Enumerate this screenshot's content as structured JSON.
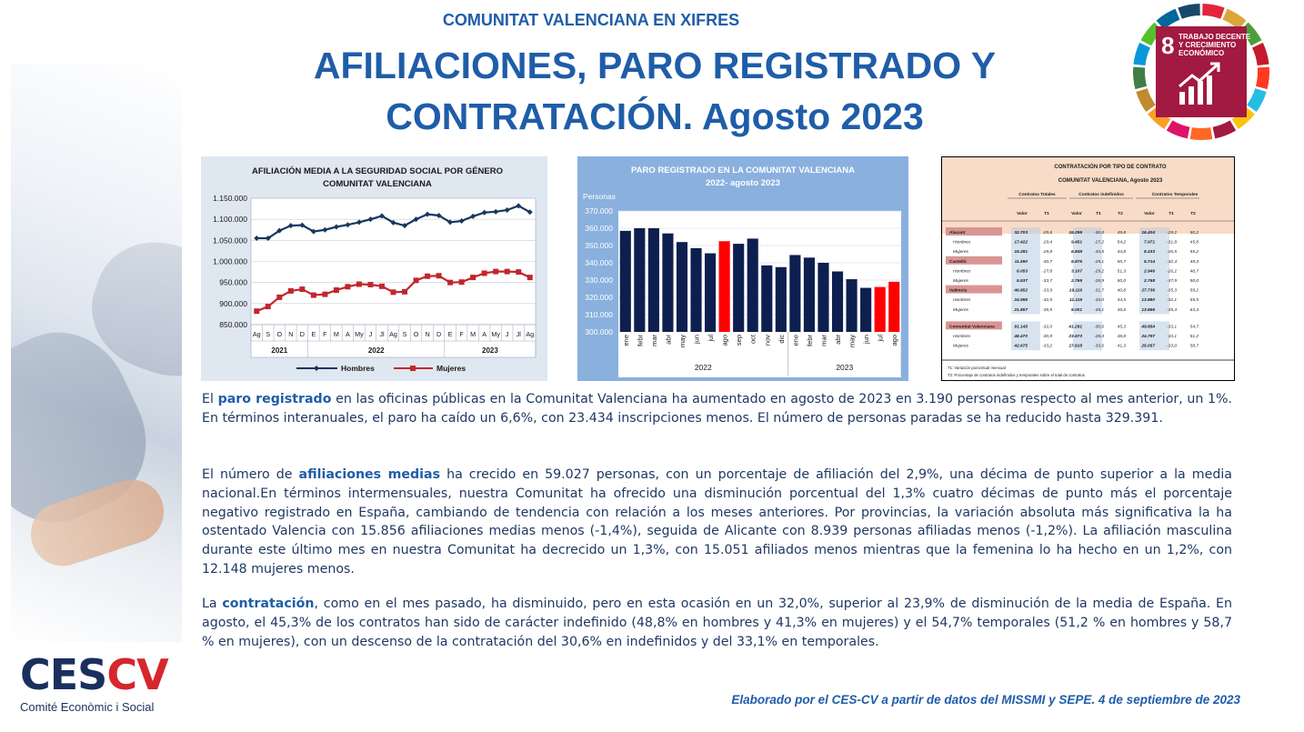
{
  "header": {
    "kicker": "COMUNITAT VALENCIANA EN XIFRES",
    "title_line1": "AFILIACIONES, PARO REGISTRADO Y",
    "title_line2": "CONTRATACIÓN. Agosto 2023"
  },
  "sdg_badge": {
    "number": "8",
    "label_line1": "TRABAJO DECENTE",
    "label_line2": "Y CRECIMIENTO",
    "label_line3": "ECONÓMICO",
    "color": "#a21942"
  },
  "logo": {
    "text_main": "CES",
    "text_accent": "CV",
    "subtitle": "Comité Econòmic i Social"
  },
  "chart_data": [
    {
      "type": "line",
      "title": "AFILIACIÓN MEDIA A LA SEGURIDAD SOCIAL POR GÉNERO",
      "subtitle": "COMUNITAT VALENCIANA",
      "categories": [
        "Ag",
        "S",
        "O",
        "N",
        "D",
        "E",
        "F",
        "M",
        "A",
        "My",
        "J",
        "Jl",
        "Ag",
        "S",
        "O",
        "N",
        "D",
        "E",
        "F",
        "M",
        "A",
        "My",
        "J",
        "Jl",
        "Ag"
      ],
      "year_groups": [
        {
          "label": "2021",
          "from": 0,
          "to": 4
        },
        {
          "label": "2022",
          "from": 5,
          "to": 16
        },
        {
          "label": "2023",
          "from": 17,
          "to": 24
        }
      ],
      "yticks": [
        "1.150.000",
        "1.100.000",
        "1.050.000",
        "1.000.000",
        "950.000",
        "900.000",
        "850.000"
      ],
      "ylim": [
        850000,
        1150000
      ],
      "series": [
        {
          "name": "Hombres",
          "color": "#17375e",
          "values": [
            1055000,
            1055000,
            1073000,
            1085000,
            1086000,
            1071000,
            1075000,
            1082000,
            1087000,
            1093000,
            1100000,
            1108000,
            1092000,
            1085000,
            1100000,
            1112000,
            1109000,
            1093000,
            1096000,
            1107000,
            1116000,
            1118000,
            1122000,
            1132000,
            1117000
          ]
        },
        {
          "name": "Mujeres",
          "color": "#c0272d",
          "values": [
            882000,
            893000,
            915000,
            930000,
            934000,
            920000,
            922000,
            932000,
            940000,
            946000,
            945000,
            941000,
            927000,
            928000,
            955000,
            965000,
            966000,
            950000,
            951000,
            962000,
            972000,
            976000,
            976000,
            975000,
            962000
          ]
        }
      ]
    },
    {
      "type": "bar",
      "title": "PARO REGISTRADO EN LA COMUNITAT VALENCIANA",
      "subtitle": "2022- agosto 2023",
      "ylabel": "Personas",
      "ylim": [
        300000,
        370000
      ],
      "yticks": [
        "370.000",
        "360.000",
        "350.000",
        "340.000",
        "330.000",
        "320.000",
        "310.000",
        "300.000"
      ],
      "categories": [
        "ene",
        "febr",
        "mar",
        "abr",
        "may",
        "jun",
        "jul",
        "ago",
        "sep",
        "oct",
        "nov",
        "dic",
        "ene",
        "febr",
        "mar",
        "abr",
        "may",
        "jun",
        "jul",
        "ago"
      ],
      "year_groups": [
        {
          "label": "2022",
          "from": 0,
          "to": 11
        },
        {
          "label": "2023",
          "from": 12,
          "to": 19
        }
      ],
      "values": [
        358500,
        360000,
        360000,
        357000,
        352000,
        348500,
        345500,
        352500,
        351000,
        354000,
        338500,
        337500,
        344500,
        343000,
        340000,
        335000,
        330500,
        325500,
        326000,
        329000
      ],
      "highlight_indices": [
        7,
        18,
        19
      ],
      "colors": {
        "normal": "#0d1f4f",
        "highlight": "#ff0000"
      }
    }
  ],
  "table": {
    "title": "CONTRATACIÓN POR TIPO DE CONTRATO",
    "subtitle": "COMUNITAT VALENCIANA, Agosto 2023",
    "groups": [
      "Contratos Totales",
      "Contratos indefinidos",
      "Contratos Temporales"
    ],
    "columns": [
      "Valor",
      "T1",
      "Valor",
      "T1",
      "T2",
      "Valor",
      "T1",
      "T2"
    ],
    "rows": [
      {
        "label": "Alacant",
        "type": "region",
        "cells": [
          "32.703",
          "-29,6",
          "16.299",
          "-30,0",
          "49,8",
          "16.404",
          "-29,2",
          "50,2"
        ]
      },
      {
        "label": "Hombres",
        "type": "sub",
        "cells": [
          "17.422",
          "-29,4",
          "9.451",
          "-27,2",
          "54,2",
          "7.971",
          "-31,8",
          "45,8"
        ]
      },
      {
        "label": "Mujeres",
        "type": "sub",
        "cells": [
          "15.281",
          "-29,8",
          "6.848",
          "-33,5",
          "44,8",
          "8.433",
          "-26,5",
          "55,2"
        ]
      },
      {
        "label": "Castelló",
        "type": "region",
        "cells": [
          "11.590",
          "-30,7",
          "5.876",
          "-29,1",
          "50,7",
          "5.714",
          "-32,4",
          "49,3"
        ]
      },
      {
        "label": "Hombres",
        "type": "sub",
        "cells": [
          "6.053",
          "-27,8",
          "3.107",
          "-29,2",
          "51,3",
          "2.946",
          "-26,2",
          "48,7"
        ]
      },
      {
        "label": "Mujeres",
        "type": "sub",
        "cells": [
          "5.537",
          "-33,7",
          "2.769",
          "-28,9",
          "50,0",
          "2.768",
          "-37,9",
          "50,0"
        ]
      },
      {
        "label": "València",
        "type": "region",
        "cells": [
          "46.852",
          "-33,9",
          "19.116",
          "-31,7",
          "40,8",
          "27.736",
          "-35,3",
          "59,2"
        ]
      },
      {
        "label": "Hombres",
        "type": "sub",
        "cells": [
          "24.995",
          "-32,5",
          "11.115",
          "-33,0",
          "44,5",
          "13.880",
          "-32,1",
          "55,5"
        ]
      },
      {
        "label": "Mujeres",
        "type": "sub",
        "cells": [
          "21.857",
          "-35,5",
          "8.001",
          "-35,1",
          "36,6",
          "13.856",
          "-35,4",
          "63,4"
        ]
      },
      {
        "label": "Comunitat Valenciana",
        "type": "total",
        "cells": [
          "91.145",
          "-32,0",
          "41.291",
          "-30,6",
          "45,3",
          "49.854",
          "-33,1",
          "54,7"
        ]
      },
      {
        "label": "Hombres",
        "type": "sub",
        "cells": [
          "48.470",
          "-30,9",
          "23.673",
          "-28,3",
          "48,8",
          "24.797",
          "-33,1",
          "51,2"
        ]
      },
      {
        "label": "Mujeres",
        "type": "sub",
        "cells": [
          "42.675",
          "-33,2",
          "17.618",
          "-33,6",
          "41,3",
          "25.057",
          "-33,0",
          "58,7"
        ]
      }
    ],
    "note1": "T1: Variación porcentual mensual",
    "note2": "T2: Porcentaje de contratos indefinidos y temporales sobre el total de contratos"
  },
  "body": {
    "p1_pre": "El ",
    "p1_bold": "paro registrado",
    "p1_post": " en las oficinas públicas en la Comunitat Valenciana ha aumentado en agosto de 2023 en 3.190 personas respecto al mes anterior, un 1%. En términos interanuales, el paro ha caído un 6,6%, con 23.434 inscripciones menos. El número de personas paradas se ha reducido hasta 329.391.",
    "p2_pre": "El número de ",
    "p2_bold": "afiliaciones medias",
    "p2_post": " ha crecido en 59.027 personas, con un porcentaje de afiliación del 2,9%, una décima de punto superior a la media nacional.En términos intermensuales, nuestra Comunitat ha ofrecido una disminución porcentual del 1,3% cuatro décimas de punto más el porcentaje negativo registrado en España, cambiando de tendencia con relación a los meses anteriores. Por provincias, la variación absoluta más significativa la ha ostentado Valencia con 15.856 afiliaciones medias menos (-1,4%), seguida de Alicante con 8.939 personas afiliadas menos (-1,2%). La afiliación masculina durante este último mes en nuestra Comunitat ha decrecido un 1,3%, con 15.051 afiliados menos mientras que la femenina lo ha hecho en un 1,2%, con 12.148 mujeres menos.",
    "p3_pre": "La ",
    "p3_bold": "contratación",
    "p3_post": ", como en el mes pasado, ha disminuido, pero en esta ocasión en un 32,0%, superior al 23,9% de disminución de la media de España. En agosto, el 45,3% de los contratos han sido de carácter indefinido (48,8% en hombres y 41,3% en mujeres) y el 54,7% temporales (51,2 % en hombres y 58,7 % en mujeres), con un descenso de la contratación del 30,6% en indefinidos y del 33,1% en temporales."
  },
  "footer": "Elaborado por el CES-CV a partir de datos del MISSMI y SEPE. 4 de septiembre de 2023"
}
